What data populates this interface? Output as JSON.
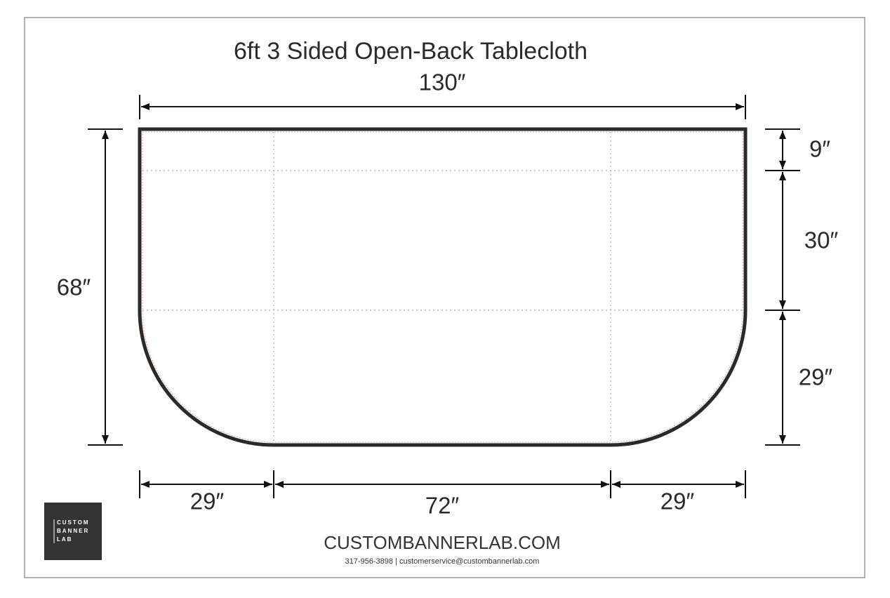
{
  "title": "6ft 3 Sided Open-Back Tablecloth",
  "dimensions": {
    "width": "130″",
    "height": "68″",
    "top_fold": "9″",
    "top_depth": "30″",
    "side_drop": "29″",
    "bottom_left": "29″",
    "bottom_middle": "72″",
    "bottom_right": "29″"
  },
  "logo": {
    "lines": [
      "CUSTOM",
      "BANNER",
      "LAB"
    ]
  },
  "footer": {
    "website": "CUSTOMBANNERLAB.COM",
    "contact": "317-956-3898 | customerservice@custombannerlab.com"
  }
}
